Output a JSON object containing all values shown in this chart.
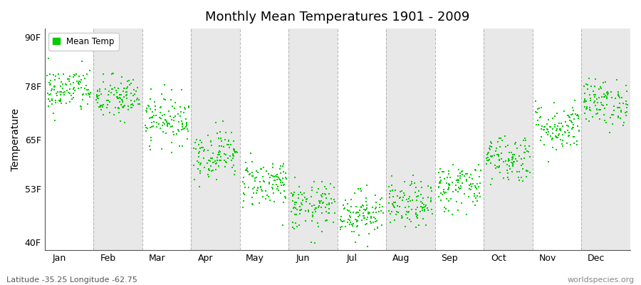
{
  "title": "Monthly Mean Temperatures 1901 - 2009",
  "ylabel": "Temperature",
  "footer_left": "Latitude -35.25 Longitude -62.75",
  "footer_right": "worldspecies.org",
  "legend_label": "Mean Temp",
  "dot_color": "#00cc00",
  "plot_bg_color": "#ffffff",
  "alt_band_color": "#e8e8e8",
  "dashed_line_color": "#aaaaaa",
  "ytick_labels": [
    "40F",
    "53F",
    "65F",
    "78F",
    "90F"
  ],
  "ytick_values": [
    40,
    53,
    65,
    78,
    90
  ],
  "ylim": [
    38,
    92
  ],
  "months": [
    "Jan",
    "Feb",
    "Mar",
    "Apr",
    "May",
    "Jun",
    "Jul",
    "Aug",
    "Sep",
    "Oct",
    "Nov",
    "Dec"
  ],
  "mean_temps_f": [
    77.0,
    75.0,
    70.0,
    61.5,
    54.5,
    48.5,
    47.0,
    49.0,
    53.5,
    60.5,
    68.0,
    74.0
  ],
  "std_temps_f": [
    2.8,
    2.8,
    3.0,
    3.0,
    3.0,
    3.0,
    2.8,
    2.8,
    3.0,
    3.0,
    3.0,
    2.8
  ],
  "n_years": 109,
  "random_seed": 42
}
